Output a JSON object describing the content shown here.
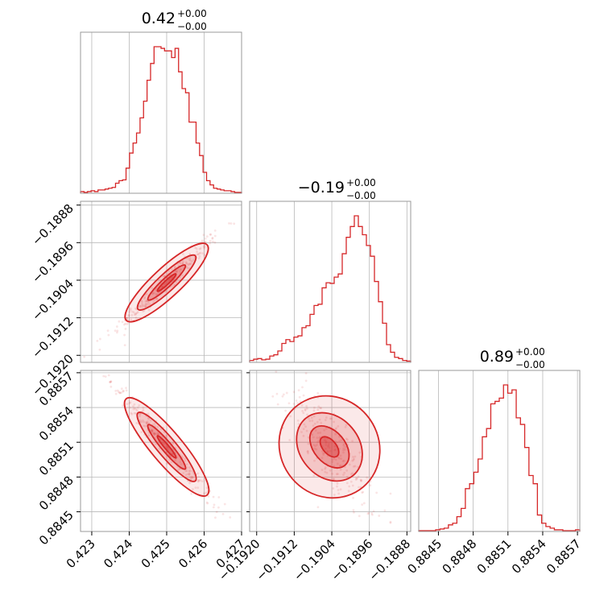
{
  "chart_data": {
    "type": "corner",
    "color": "#d62728",
    "params": [
      {
        "title_value": "0.42",
        "title_plus": "+0.00",
        "title_minus": "−0.00",
        "range": [
          0.4227,
          0.427
        ],
        "ticks": [
          0.423,
          0.424,
          0.425,
          0.426,
          0.427
        ],
        "tick_labels": [
          "0.423",
          "0.424",
          "0.425",
          "0.426",
          "0.427"
        ],
        "hist_bins": [
          0.4227,
          0.427
        ],
        "hist_counts": [
          2,
          1,
          2,
          3,
          2,
          4,
          4,
          5,
          6,
          7,
          12,
          15,
          16,
          30,
          48,
          60,
          72,
          90,
          110,
          135,
          155,
          175,
          175,
          173,
          170,
          170,
          162,
          173,
          145,
          125,
          120,
          85,
          85,
          60,
          45,
          25,
          15,
          10,
          6,
          5,
          4,
          3,
          3,
          2,
          1,
          1
        ]
      },
      {
        "title_value": "−0.19",
        "title_plus": "+0.00",
        "title_minus": "−0.00",
        "range": [
          -0.19215,
          -0.18872
        ],
        "ticks": [
          -0.192,
          -0.1912,
          -0.1904,
          -0.1896,
          -0.1888
        ],
        "tick_labels": [
          "−0.1920",
          "−0.1912",
          "−0.1904",
          "−0.1896",
          "−0.1888"
        ],
        "hist_counts": [
          3,
          5,
          6,
          4,
          5,
          10,
          12,
          18,
          30,
          36,
          33,
          40,
          42,
          55,
          58,
          76,
          90,
          92,
          118,
          126,
          125,
          135,
          140,
          172,
          198,
          215,
          232,
          215,
          202,
          185,
          168,
          128,
          96,
          62,
          28,
          16,
          8,
          6,
          3,
          2
        ]
      },
      {
        "title_value": "0.89",
        "title_plus": "+0.00",
        "title_minus": "−0.00",
        "range": [
          0.88433,
          0.88572
        ],
        "ticks": [
          0.8845,
          0.8848,
          0.8851,
          0.8854,
          0.8857
        ],
        "tick_labels": [
          "0.8845",
          "0.8848",
          "0.8851",
          "0.8854",
          "0.8857"
        ],
        "hist_counts": [
          1,
          1,
          1,
          1,
          2,
          3,
          4,
          8,
          10,
          18,
          28,
          52,
          58,
          72,
          88,
          115,
          125,
          155,
          158,
          162,
          178,
          168,
          172,
          138,
          130,
          102,
          68,
          58,
          20,
          10,
          6,
          4,
          2,
          2,
          1,
          1,
          1,
          2
        ]
      }
    ],
    "scatter_pairs": [
      {
        "x_param": 0,
        "y_param": 1,
        "slope": 0.745,
        "x_center": 0.425,
        "y_center": -0.19045,
        "x_sd": 0.00045,
        "perp_sd": 8e-05,
        "x_extent": [
          0.4228,
          0.4268
        ]
      },
      {
        "x_param": 0,
        "y_param": 2,
        "slope": -0.385,
        "x_center": 0.425,
        "y_center": 0.88506,
        "x_sd": 0.00045,
        "perp_sd": 3.5e-05,
        "x_extent": [
          0.4228,
          0.4268
        ]
      },
      {
        "x_param": 1,
        "y_param": 2,
        "slope": -0.48,
        "x_center": -0.19045,
        "y_center": 0.88506,
        "x_sd": 0.0003,
        "perp_sd": 0.00011,
        "x_extent": [
          -0.19205,
          -0.18915
        ]
      }
    ]
  }
}
